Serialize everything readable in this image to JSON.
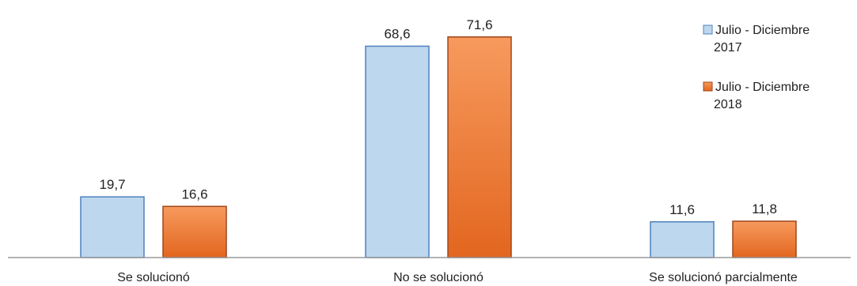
{
  "chart_data": {
    "type": "bar",
    "categories": [
      "Se solucionó",
      "No se solucionó",
      "Se solucionó parcialmente"
    ],
    "series": [
      {
        "name": "Julio - Diciembre 2017",
        "legend_lines": [
          "Julio - Diciembre",
          "2017"
        ],
        "values": [
          19.7,
          68.6,
          11.6
        ],
        "labels": [
          "19,7",
          "68,6",
          "11,6"
        ],
        "color": "#bdd7ee",
        "border": "#4f81bd"
      },
      {
        "name": "Julio - Diciembre 2018",
        "legend_lines": [
          "Julio - Diciembre",
          "2018"
        ],
        "values": [
          16.6,
          71.6,
          11.8
        ],
        "labels": [
          "16,6",
          "71,6",
          "11,8"
        ],
        "color": "#ed7d31",
        "border": "#a0461a"
      }
    ],
    "ylim": [
      0,
      80
    ],
    "legend": "top-right",
    "grid": false,
    "title": "",
    "xlabel": "",
    "ylabel": ""
  }
}
